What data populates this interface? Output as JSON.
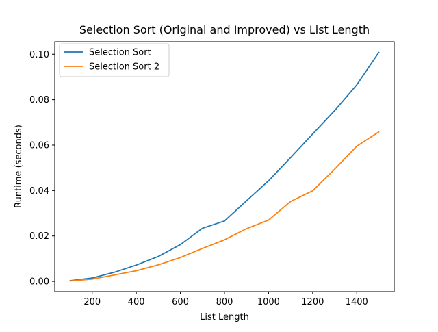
{
  "chart_data": {
    "type": "line",
    "title": "Selection Sort (Original and Improved) vs List Length",
    "xlabel": "List Length",
    "ylabel": "Runtime (seconds)",
    "xlim": [
      30,
      1570
    ],
    "ylim": [
      -0.0045,
      0.1055
    ],
    "xticks": [
      200,
      400,
      600,
      800,
      1000,
      1200,
      1400
    ],
    "xtick_labels": [
      "200",
      "400",
      "600",
      "800",
      "1000",
      "1200",
      "1400"
    ],
    "yticks": [
      0.0,
      0.02,
      0.04,
      0.06,
      0.08,
      0.1
    ],
    "ytick_labels": [
      "0.00",
      "0.02",
      "0.04",
      "0.06",
      "0.08",
      "0.10"
    ],
    "grid": false,
    "legend_position": "upper-left",
    "x": [
      100,
      200,
      300,
      400,
      500,
      600,
      700,
      800,
      900,
      1000,
      1100,
      1200,
      1300,
      1400,
      1500
    ],
    "series": [
      {
        "name": "Selection Sort",
        "color": "#1f77b4",
        "values": [
          0.0003,
          0.0015,
          0.004,
          0.0072,
          0.011,
          0.0162,
          0.0234,
          0.0266,
          0.0355,
          0.0443,
          0.0545,
          0.0649,
          0.0752,
          0.0865,
          0.1008
        ]
      },
      {
        "name": "Selection Sort 2",
        "color": "#ff7f0e",
        "values": [
          0.0002,
          0.001,
          0.0028,
          0.0047,
          0.0073,
          0.0105,
          0.0145,
          0.0183,
          0.0232,
          0.027,
          0.0352,
          0.0399,
          0.0494,
          0.0595,
          0.0658
        ]
      }
    ]
  }
}
